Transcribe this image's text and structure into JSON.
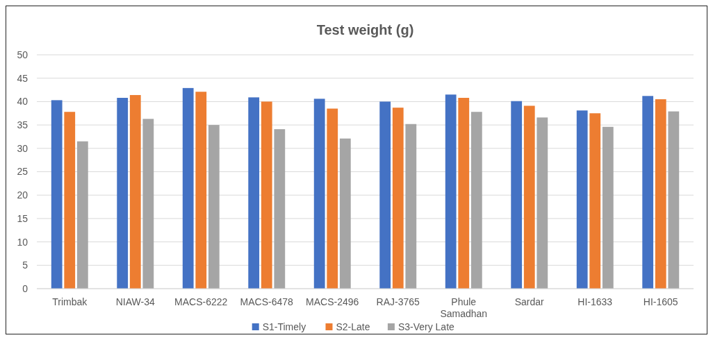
{
  "chart_data": {
    "type": "bar",
    "title": "Test weight (g)",
    "categories": [
      "Trimbak",
      "NIAW-34",
      "MACS-6222",
      "MACS-6478",
      "MACS-2496",
      "RAJ-3765",
      "Phule Samadhan",
      "Sardar",
      "HI-1633",
      "HI-1605"
    ],
    "series": [
      {
        "name": "S1-Timely",
        "color": "#4472c4",
        "values": [
          40.3,
          40.8,
          42.9,
          40.9,
          40.6,
          40.0,
          41.5,
          40.1,
          38.1,
          41.2
        ]
      },
      {
        "name": "S2-Late",
        "color": "#ed7d31",
        "values": [
          37.8,
          41.4,
          42.1,
          40.0,
          38.5,
          38.7,
          40.8,
          39.1,
          37.5,
          40.5
        ]
      },
      {
        "name": "S3-Very Late",
        "color": "#a5a5a5",
        "values": [
          31.5,
          36.3,
          35.0,
          34.1,
          32.1,
          35.2,
          37.8,
          36.6,
          34.6,
          37.9
        ]
      }
    ],
    "ylim": [
      0,
      50
    ],
    "yticks": [
      0,
      5,
      10,
      15,
      20,
      25,
      30,
      35,
      40,
      45,
      50
    ],
    "grid": "y",
    "legend": "bottom"
  }
}
